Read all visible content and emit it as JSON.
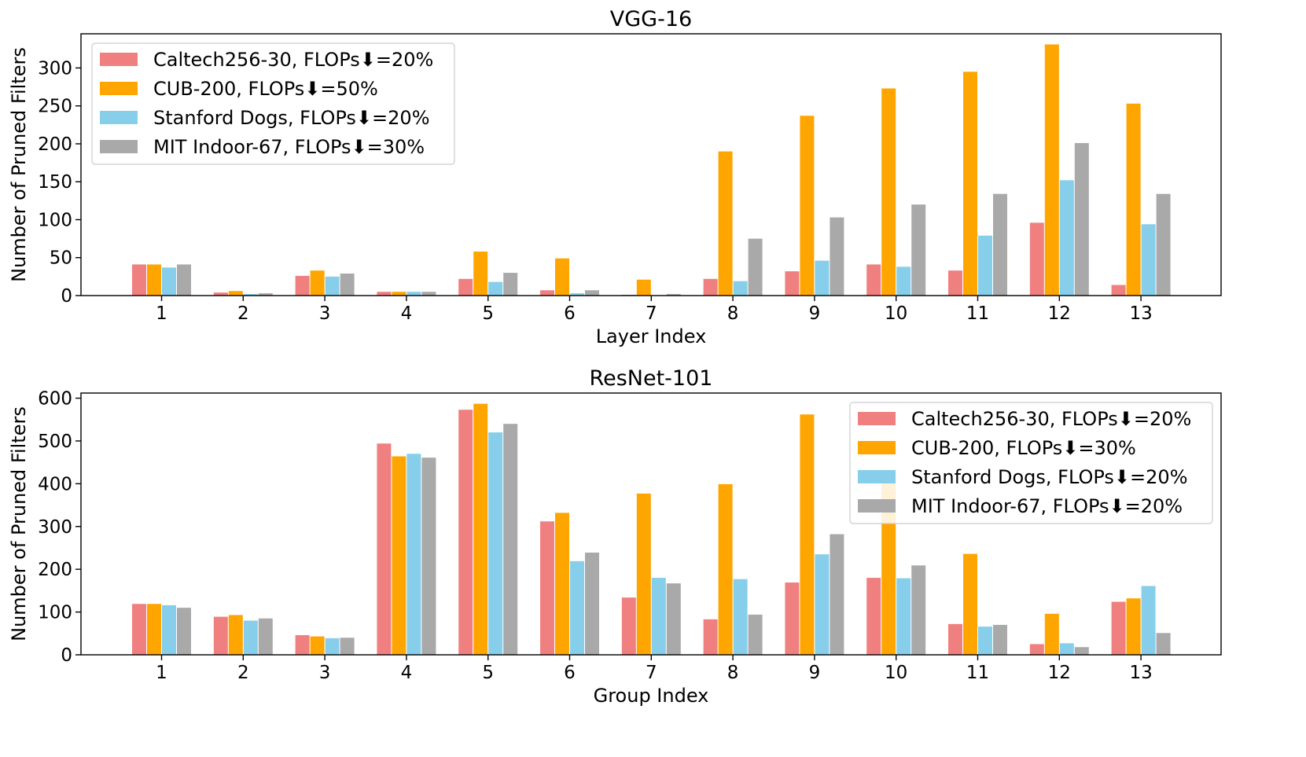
{
  "chart_data": [
    {
      "type": "bar",
      "title": "VGG-16",
      "xlabel": "Layer Index",
      "ylabel": "Number of Pruned Filters",
      "ylim": [
        0,
        345
      ],
      "yticks": [
        0,
        50,
        100,
        150,
        200,
        250,
        300
      ],
      "categories": [
        "1",
        "2",
        "3",
        "4",
        "5",
        "6",
        "7",
        "8",
        "9",
        "10",
        "11",
        "12",
        "13"
      ],
      "legend_position": "top-left",
      "series": [
        {
          "name": "Caltech256-30, FLOPs⬇=20%",
          "color": "#F08080",
          "values": [
            41,
            4,
            26,
            5,
            22,
            7,
            1,
            22,
            32,
            41,
            33,
            96,
            14
          ]
        },
        {
          "name": "CUB-200, FLOPs⬇=50%",
          "color": "#FFA500",
          "values": [
            41,
            6,
            33,
            5,
            58,
            49,
            21,
            190,
            237,
            273,
            295,
            331,
            253
          ]
        },
        {
          "name": "Stanford Dogs, FLOPs⬇=20%",
          "color": "#87CEEB",
          "values": [
            37,
            2,
            25,
            5,
            18,
            3,
            0,
            19,
            46,
            38,
            79,
            152,
            94
          ]
        },
        {
          "name": "MIT Indoor-67, FLOPs⬇=30%",
          "color": "#A9A9A9",
          "values": [
            41,
            3,
            29,
            5,
            30,
            7,
            2,
            75,
            103,
            120,
            134,
            201,
            134
          ]
        }
      ]
    },
    {
      "type": "bar",
      "title": "ResNet-101",
      "xlabel": "Group Index",
      "ylabel": "Number of Pruned Filters",
      "ylim": [
        0,
        612
      ],
      "yticks": [
        0,
        100,
        200,
        300,
        400,
        500,
        600
      ],
      "categories": [
        "1",
        "2",
        "3",
        "4",
        "5",
        "6",
        "7",
        "8",
        "9",
        "10",
        "11",
        "12",
        "13"
      ],
      "legend_position": "top-right",
      "series": [
        {
          "name": "Caltech256-30, FLOPs⬇=20%",
          "color": "#F08080",
          "values": [
            119,
            89,
            46,
            494,
            573,
            312,
            134,
            83,
            169,
            180,
            72,
            25,
            124
          ]
        },
        {
          "name": "CUB-200, FLOPs⬇=30%",
          "color": "#FFA500",
          "values": [
            119,
            93,
            43,
            464,
            587,
            332,
            377,
            399,
            562,
            420,
            236,
            96,
            132
          ]
        },
        {
          "name": "Stanford Dogs, FLOPs⬇=20%",
          "color": "#87CEEB",
          "values": [
            116,
            80,
            39,
            470,
            520,
            219,
            180,
            177,
            235,
            179,
            66,
            27,
            161
          ]
        },
        {
          "name": "MIT Indoor-67, FLOPs⬇=20%",
          "color": "#A9A9A9",
          "values": [
            110,
            85,
            40,
            461,
            540,
            239,
            167,
            94,
            282,
            209,
            70,
            18,
            51
          ]
        }
      ]
    }
  ]
}
